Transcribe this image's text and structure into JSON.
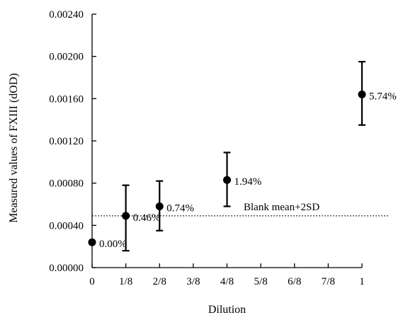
{
  "chart_data": {
    "type": "scatter",
    "xlabel": "Dilution",
    "ylabel": "Measured values of  FXIII (dOD)",
    "ylim": [
      0,
      0.0024
    ],
    "xlim": [
      0,
      1
    ],
    "grid": false,
    "x_ticks": [
      {
        "value": 0,
        "label": "0"
      },
      {
        "value": 0.125,
        "label": "1/8"
      },
      {
        "value": 0.25,
        "label": "2/8"
      },
      {
        "value": 0.375,
        "label": "3/8"
      },
      {
        "value": 0.5,
        "label": "4/8"
      },
      {
        "value": 0.625,
        "label": "5/8"
      },
      {
        "value": 0.75,
        "label": "6/8"
      },
      {
        "value": 0.875,
        "label": "7/8"
      },
      {
        "value": 1,
        "label": "1"
      }
    ],
    "y_ticks": [
      {
        "value": 0,
        "label": "0.00000"
      },
      {
        "value": 0.0004,
        "label": "0.00040"
      },
      {
        "value": 0.0008,
        "label": "0.00080"
      },
      {
        "value": 0.0012,
        "label": "0.00120"
      },
      {
        "value": 0.0016,
        "label": "0.00160"
      },
      {
        "value": 0.002,
        "label": "0.00200"
      },
      {
        "value": 0.0024,
        "label": "0.00240"
      }
    ],
    "points": [
      {
        "x": 0,
        "y": 0.00024,
        "err_low": null,
        "err_high": null,
        "label": "0.00%"
      },
      {
        "x": 0.125,
        "y": 0.00049,
        "err_low": 0.00016,
        "err_high": 0.00078,
        "label": "0.46%"
      },
      {
        "x": 0.25,
        "y": 0.00058,
        "err_low": 0.00035,
        "err_high": 0.00082,
        "label": "0.74%"
      },
      {
        "x": 0.5,
        "y": 0.00083,
        "err_low": 0.00058,
        "err_high": 0.00109,
        "label": "1.94%"
      },
      {
        "x": 1,
        "y": 0.00164,
        "err_low": 0.00135,
        "err_high": 0.00195,
        "label": "5.74%"
      }
    ],
    "reference_line": {
      "y": 0.00049,
      "style": "dotted",
      "label": "Blank mean+2SD"
    }
  }
}
